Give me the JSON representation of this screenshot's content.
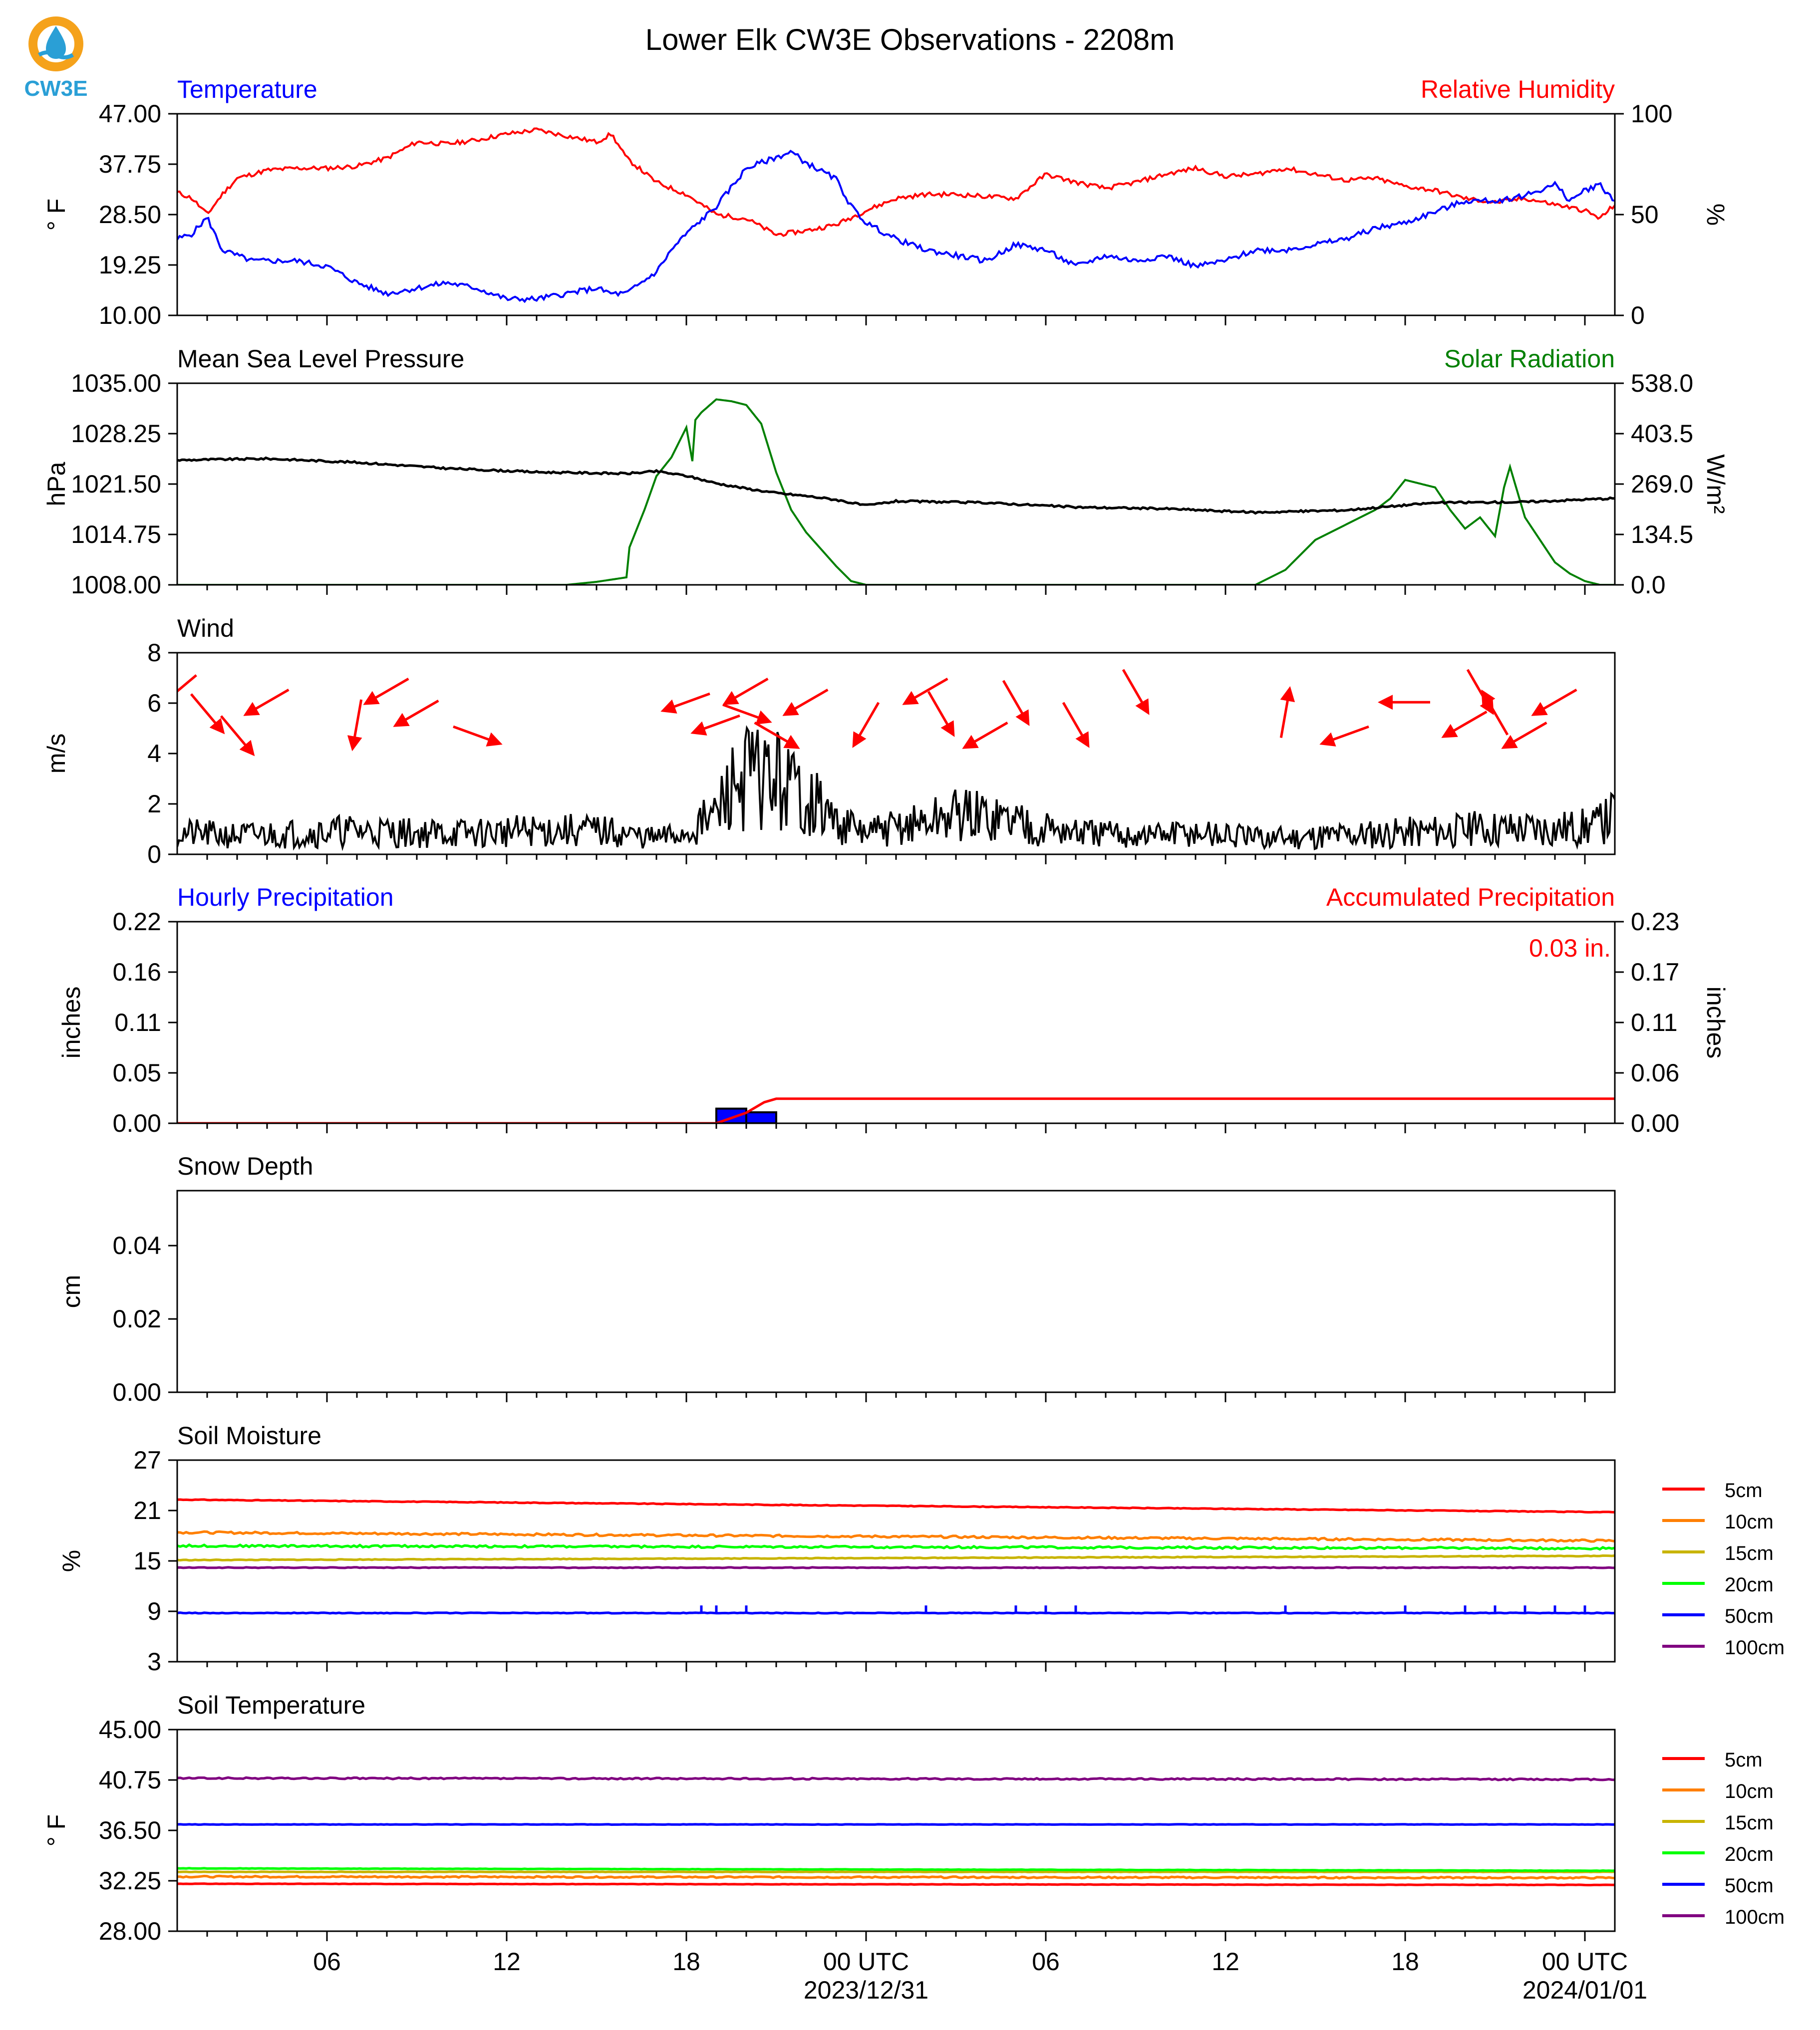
{
  "title": "Lower Elk CW3E Observations - 2208m",
  "logo": {
    "text": "CW3E",
    "colors": {
      "ring": "#f5a21b",
      "drop": "#2a9fd6",
      "text": "#2a9fd6"
    }
  },
  "colors": {
    "temperature": "#0000ff",
    "humidity": "#ff0000",
    "pressure": "#000000",
    "solar": "#008000",
    "wind": "#000000",
    "wind_arrow": "#ff0000",
    "hourly_precip": "#0000ff",
    "accum_precip": "#ff0000",
    "soil": {
      "5cm": "#ff0000",
      "10cm": "#ff7f00",
      "15cm": "#c8b400",
      "20cm": "#00ff00",
      "50cm": "#0000ff",
      "100cm": "#800080"
    }
  },
  "x_axis": {
    "ticks": [
      "06",
      "12",
      "18",
      "00 UTC",
      "06",
      "12",
      "18",
      "00 UTC"
    ],
    "tick_hours": [
      6,
      12,
      18,
      24,
      30,
      36,
      42,
      48
    ],
    "dates": [
      "2023/12/31",
      "2024/01/01"
    ],
    "range_hours": [
      1,
      49
    ]
  },
  "chart_data": [
    {
      "type": "line",
      "title_left": "Temperature",
      "title_right": "Relative Humidity",
      "ylabel_left": "° F",
      "ylabel_right": "%",
      "yticks_left": [
        "47.00",
        "37.75",
        "28.50",
        "19.25",
        "10.00"
      ],
      "yticks_right": [
        "100",
        "50",
        "0"
      ],
      "ylim_left": [
        10,
        47
      ],
      "ylim_right": [
        0,
        100
      ],
      "series": [
        {
          "name": "Temperature",
          "axis": "left",
          "x": [
            1,
            1.5,
            2,
            2.5,
            3,
            3.5,
            4,
            5,
            6,
            7,
            7.5,
            8,
            9,
            10,
            11,
            11.5,
            12,
            13,
            14,
            15,
            15.5,
            16,
            17,
            17.5,
            18,
            19,
            20,
            21,
            21.5,
            22,
            23,
            23.5,
            24,
            25,
            26,
            27,
            28,
            29,
            30,
            31,
            32,
            33,
            34,
            35,
            36,
            37,
            38,
            39,
            40,
            41,
            42,
            43,
            44,
            45,
            46,
            46.5,
            47,
            47.5,
            48,
            48.5,
            49
          ],
          "y": [
            24,
            25,
            28,
            22,
            21,
            20,
            20,
            20,
            19,
            16,
            15,
            14,
            15,
            16,
            15,
            14,
            13,
            13,
            14,
            15,
            14,
            14,
            18,
            22,
            25,
            30,
            37,
            39,
            40,
            38,
            35,
            30,
            27,
            24,
            22,
            21,
            20,
            23,
            22,
            19,
            21,
            20,
            21,
            19,
            20,
            22,
            22,
            23,
            24,
            26,
            27,
            29,
            31,
            31,
            32,
            33,
            34,
            31,
            33,
            34,
            31
          ]
        },
        {
          "name": "Relative Humidity",
          "axis": "right",
          "x": [
            1,
            1.5,
            2,
            2.5,
            3,
            4,
            5,
            6,
            7,
            8,
            9,
            10,
            11,
            12,
            13,
            14,
            15,
            15.5,
            16,
            17,
            18,
            19,
            20,
            21,
            22,
            23,
            24,
            25,
            26,
            27,
            28,
            29,
            30,
            31,
            32,
            33,
            34,
            35,
            36,
            37,
            38,
            39,
            40,
            41,
            42,
            43,
            44,
            45,
            46,
            47,
            48,
            48.5,
            49
          ],
          "y": [
            61,
            58,
            50,
            60,
            68,
            72,
            73,
            73,
            74,
            78,
            86,
            85,
            87,
            90,
            92,
            89,
            86,
            90,
            78,
            66,
            60,
            50,
            48,
            40,
            42,
            45,
            52,
            58,
            60,
            60,
            59,
            58,
            70,
            66,
            63,
            66,
            70,
            73,
            69,
            70,
            73,
            70,
            67,
            68,
            64,
            62,
            58,
            56,
            58,
            55,
            52,
            48,
            55
          ]
        }
      ]
    },
    {
      "type": "line",
      "title_left": "Mean Sea Level Pressure",
      "title_right": "Solar Radiation",
      "ylabel_left": "hPa",
      "ylabel_right": "W/m²",
      "yticks_left": [
        "1035.00",
        "1028.25",
        "1021.50",
        "1014.75",
        "1008.00"
      ],
      "yticks_right": [
        "538.0",
        "403.5",
        "269.0",
        "134.5",
        "0.0"
      ],
      "ylim_left": [
        1008,
        1035
      ],
      "ylim_right": [
        0,
        538
      ],
      "series": [
        {
          "name": "Mean Sea Level Pressure",
          "axis": "left",
          "x": [
            1,
            4,
            7,
            10,
            13,
            16,
            17,
            18,
            19,
            20,
            21,
            22,
            23,
            24,
            25,
            28,
            31,
            34,
            37,
            40,
            43,
            46,
            49
          ],
          "y": [
            1024.7,
            1024.9,
            1024.4,
            1023.6,
            1023.1,
            1022.9,
            1023.2,
            1022.6,
            1021.6,
            1020.9,
            1020.3,
            1019.9,
            1019.4,
            1018.6,
            1019.2,
            1019.0,
            1018.4,
            1018.2,
            1017.7,
            1018.0,
            1019.0,
            1019.1,
            1019.6
          ]
        },
        {
          "name": "Solar Radiation",
          "axis": "right",
          "x": [
            1,
            14,
            15,
            16,
            16.1,
            16.6,
            17,
            17.5,
            18,
            18.2,
            18.3,
            18.5,
            19,
            19.5,
            20,
            20.5,
            21,
            21.5,
            22,
            23,
            23.5,
            24,
            25,
            30,
            35,
            37,
            38,
            39,
            40,
            40.5,
            41,
            41.5,
            42,
            42.5,
            43,
            43.5,
            44,
            44.5,
            45,
            45.3,
            45.5,
            46,
            46.5,
            47,
            47.5,
            48,
            48.5,
            49
          ],
          "y": [
            0,
            0,
            8,
            20,
            100,
            200,
            290,
            340,
            420,
            330,
            440,
            460,
            495,
            490,
            480,
            430,
            300,
            200,
            140,
            50,
            10,
            0,
            0,
            0,
            0,
            0,
            40,
            120,
            160,
            180,
            200,
            230,
            280,
            270,
            260,
            200,
            150,
            180,
            130,
            260,
            315,
            180,
            120,
            60,
            30,
            10,
            0,
            0
          ]
        }
      ]
    },
    {
      "type": "line",
      "title_left": "Wind",
      "ylabel_left": "m/s",
      "yticks_left": [
        "8",
        "6",
        "4",
        "2",
        "0"
      ],
      "ylim_left": [
        0,
        8
      ],
      "series": [
        {
          "name": "Wind",
          "x": [
            1,
            3,
            5,
            7,
            9,
            11,
            13,
            15,
            17,
            18,
            19,
            19.5,
            20,
            21,
            22,
            23,
            24,
            25,
            26,
            27,
            28,
            29,
            30,
            31,
            33,
            35,
            37,
            39,
            41,
            43,
            45,
            47,
            48.5,
            49
          ],
          "y": [
            0.8,
            0.7,
            0.8,
            0.9,
            0.8,
            0.8,
            0.9,
            0.9,
            0.6,
            0.8,
            1.5,
            2.5,
            3.0,
            2.8,
            2.2,
            1.2,
            0.8,
            1.0,
            1.2,
            1.5,
            1.4,
            1.3,
            1.0,
            0.8,
            0.7,
            0.8,
            0.6,
            0.7,
            0.8,
            0.9,
            1.0,
            1.0,
            1.1,
            1.6
          ]
        }
      ],
      "wind_barbs": {
        "x": [
          1,
          2,
          3,
          4,
          7,
          8,
          9,
          11,
          18,
          19,
          20,
          20,
          21,
          22,
          24,
          26,
          26.5,
          28,
          29,
          31,
          33,
          38,
          40,
          42,
          44,
          44.5,
          45,
          46,
          47
        ],
        "dir_deg": [
          230,
          140,
          140,
          240,
          190,
          240,
          240,
          110,
          250,
          250,
          240,
          110,
          120,
          240,
          210,
          240,
          150,
          240,
          150,
          150,
          150,
          10,
          250,
          270,
          240,
          150,
          330,
          240,
          240
        ]
      }
    },
    {
      "type": "bar",
      "title_left": "Hourly Precipitation",
      "title_right": "Accumulated Precipitation",
      "annotation": "0.03 in.",
      "ylabel_left": "inches",
      "ylabel_right": "inches",
      "yticks_left": [
        "0.22",
        "0.16",
        "0.11",
        "0.05",
        "0.00"
      ],
      "yticks_right": [
        "0.23",
        "0.17",
        "0.11",
        "0.06",
        "0.00"
      ],
      "ylim_left": [
        0,
        0.22
      ],
      "ylim_right": [
        0,
        0.23
      ],
      "series": [
        {
          "name": "Hourly Precipitation",
          "axis": "left",
          "bars": [
            {
              "start": 19,
              "end": 20,
              "value": 0.016
            },
            {
              "start": 20,
              "end": 21,
              "value": 0.012
            }
          ]
        },
        {
          "name": "Accumulated Precipitation",
          "axis": "right",
          "x": [
            1,
            19,
            20,
            20.6,
            21,
            49
          ],
          "y": [
            0,
            0,
            0.012,
            0.024,
            0.028,
            0.028
          ]
        }
      ]
    },
    {
      "type": "line",
      "title_left": "Snow Depth",
      "ylabel_left": "cm",
      "yticks_left": [
        "0.04",
        "0.02",
        "0.00"
      ],
      "ylim_left": [
        0,
        0.055
      ],
      "series": []
    },
    {
      "type": "line",
      "title_left": "Soil Moisture",
      "ylabel_left": "%",
      "yticks_left": [
        "27",
        "21",
        "15",
        "9",
        "3"
      ],
      "ylim_left": [
        3,
        27
      ],
      "legend": [
        "5cm",
        "10cm",
        "15cm",
        "20cm",
        "50cm",
        "100cm"
      ],
      "series": [
        {
          "name": "5cm",
          "x": [
            1,
            49
          ],
          "y": [
            22.3,
            20.8
          ]
        },
        {
          "name": "10cm",
          "x": [
            1,
            49
          ],
          "y": [
            18.4,
            17.4
          ]
        },
        {
          "name": "15cm",
          "x": [
            1,
            49
          ],
          "y": [
            15.1,
            15.6
          ]
        },
        {
          "name": "20cm",
          "x": [
            1,
            49
          ],
          "y": [
            16.8,
            16.5
          ]
        },
        {
          "name": "50cm",
          "x": [
            1,
            49
          ],
          "y": [
            8.8,
            8.8
          ]
        },
        {
          "name": "100cm",
          "x": [
            1,
            49
          ],
          "y": [
            14.2,
            14.2
          ]
        }
      ]
    },
    {
      "type": "line",
      "title_left": "Soil Temperature",
      "ylabel_left": "° F",
      "yticks_left": [
        "45.00",
        "40.75",
        "36.50",
        "32.25",
        "28.00"
      ],
      "ylim_left": [
        28,
        45
      ],
      "legend": [
        "5cm",
        "10cm",
        "15cm",
        "20cm",
        "50cm",
        "100cm"
      ],
      "series": [
        {
          "name": "5cm",
          "x": [
            1,
            49
          ],
          "y": [
            32.0,
            31.9
          ]
        },
        {
          "name": "10cm",
          "x": [
            1,
            49
          ],
          "y": [
            32.6,
            32.5
          ]
        },
        {
          "name": "15cm",
          "x": [
            1,
            49
          ],
          "y": [
            33.0,
            33.0
          ]
        },
        {
          "name": "20cm",
          "x": [
            1,
            49
          ],
          "y": [
            33.3,
            33.1
          ]
        },
        {
          "name": "50cm",
          "x": [
            1,
            49
          ],
          "y": [
            37.0,
            37.0
          ]
        },
        {
          "name": "100cm",
          "x": [
            1,
            49
          ],
          "y": [
            40.9,
            40.8
          ]
        }
      ]
    }
  ]
}
